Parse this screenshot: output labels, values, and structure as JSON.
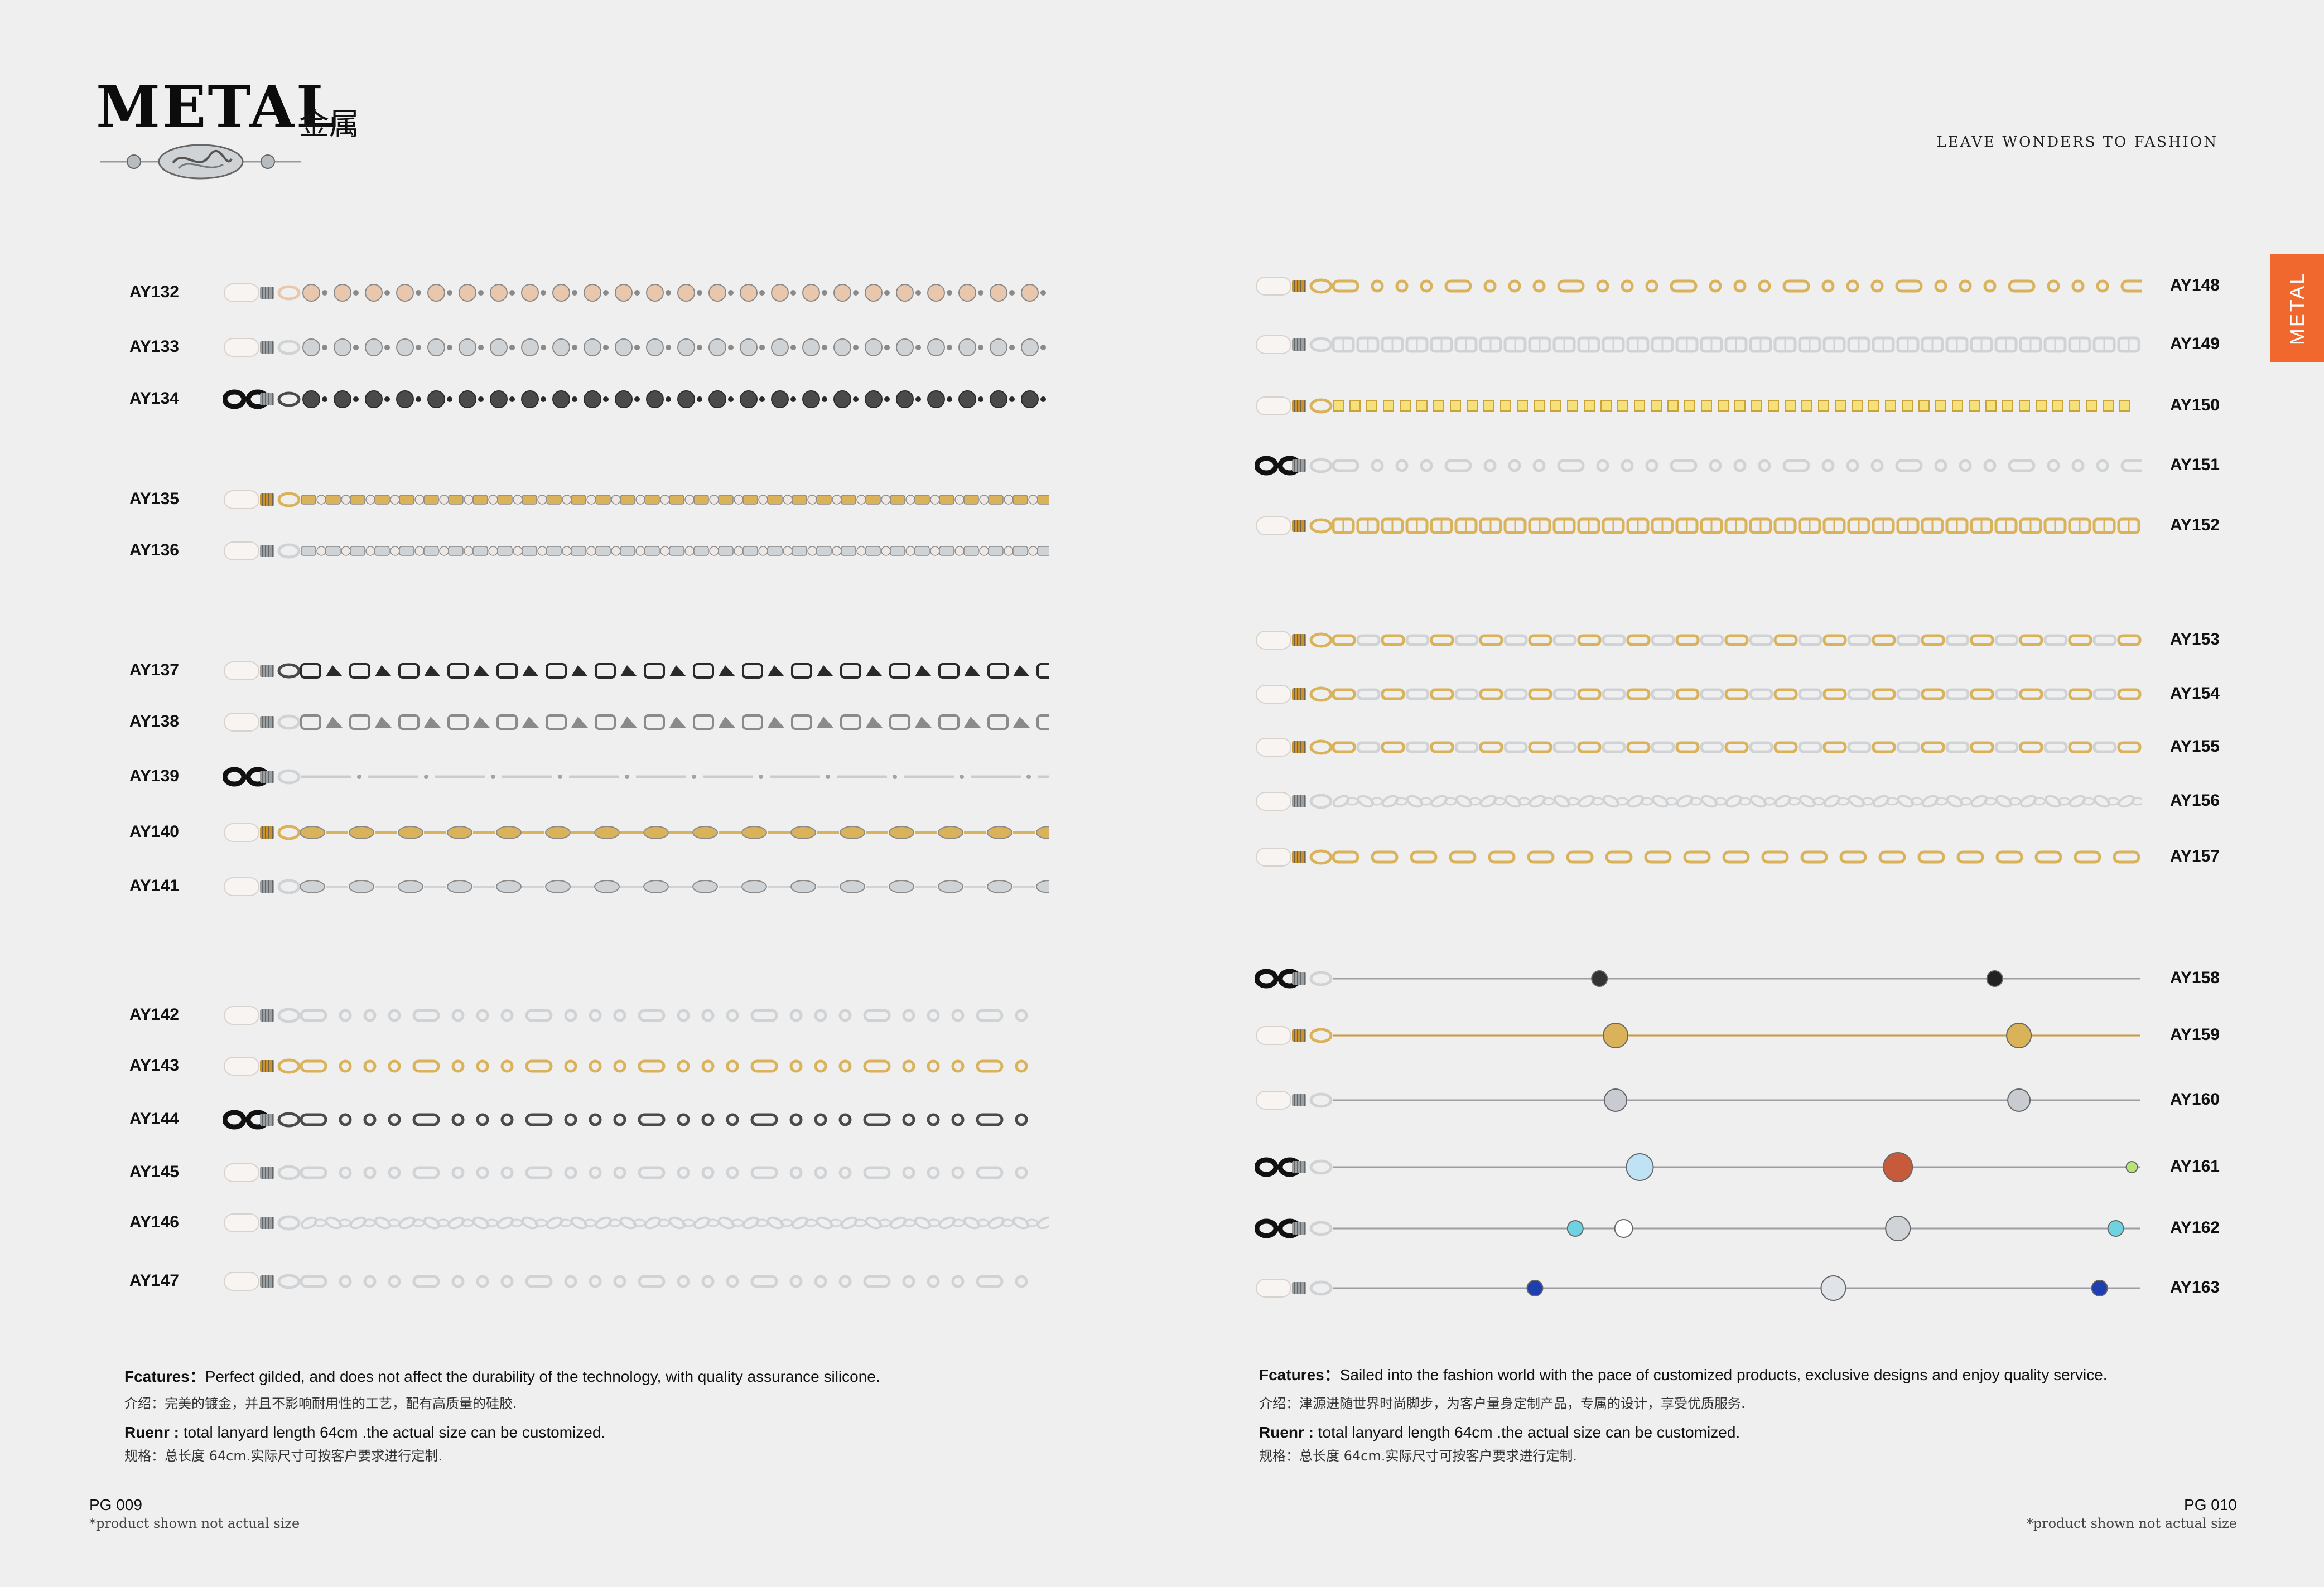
{
  "header": {
    "title": "METAL",
    "title_cn": "金属",
    "tagline": "LEAVE WONDERS TO FASHION",
    "side_tab": "METAL"
  },
  "colors": {
    "accent": "#f0682e",
    "background": "#efefef",
    "gold": "#d9b25a",
    "silver": "#cfd3d6",
    "rose": "#e9c7ad",
    "gunmetal": "#4a4a4a"
  },
  "left_products": [
    {
      "code": "AY132",
      "style": "beads",
      "metal": "rose",
      "end": "clear"
    },
    {
      "code": "AY133",
      "style": "beads",
      "metal": "silver",
      "end": "clear"
    },
    {
      "code": "AY134",
      "style": "beads",
      "metal": "gunmetal",
      "end": "black"
    },
    {
      "code": "AY135",
      "style": "links",
      "metal": "gold",
      "end": "clear"
    },
    {
      "code": "AY136",
      "style": "links",
      "metal": "silver",
      "end": "clear"
    },
    {
      "code": "AY137",
      "style": "blocks",
      "metal": "gunmetal",
      "end": "clear"
    },
    {
      "code": "AY138",
      "style": "blocks",
      "metal": "silver",
      "end": "clear"
    },
    {
      "code": "AY139",
      "style": "bars",
      "metal": "silver",
      "end": "black"
    },
    {
      "code": "AY140",
      "style": "ovals",
      "metal": "gold",
      "end": "clear"
    },
    {
      "code": "AY141",
      "style": "ovals",
      "metal": "silver",
      "end": "clear"
    },
    {
      "code": "AY142",
      "style": "figaro",
      "metal": "silver",
      "end": "clear"
    },
    {
      "code": "AY143",
      "style": "figaro",
      "metal": "gold",
      "end": "clear"
    },
    {
      "code": "AY144",
      "style": "figaro",
      "metal": "gunmetal",
      "end": "black"
    },
    {
      "code": "AY145",
      "style": "figaro",
      "metal": "silver",
      "end": "clear"
    },
    {
      "code": "AY146",
      "style": "twist",
      "metal": "silver",
      "end": "clear"
    },
    {
      "code": "AY147",
      "style": "figaro",
      "metal": "silver",
      "end": "clear"
    }
  ],
  "right_products": [
    {
      "code": "AY148",
      "style": "figaro",
      "metal": "gold",
      "end": "clear"
    },
    {
      "code": "AY149",
      "style": "flat",
      "metal": "silver",
      "end": "clear"
    },
    {
      "code": "AY150",
      "style": "box",
      "metal": "gold",
      "end": "clear"
    },
    {
      "code": "AY151",
      "style": "figaro",
      "metal": "silver",
      "end": "black"
    },
    {
      "code": "AY152",
      "style": "flat",
      "metal": "gold",
      "end": "clear"
    },
    {
      "code": "AY153",
      "style": "mixed",
      "metal": "gold",
      "end": "clear"
    },
    {
      "code": "AY154",
      "style": "mixed",
      "metal": "gold",
      "end": "clear"
    },
    {
      "code": "AY155",
      "style": "mixed",
      "metal": "gold",
      "end": "clear"
    },
    {
      "code": "AY156",
      "style": "twist",
      "metal": "silver",
      "end": "clear"
    },
    {
      "code": "AY157",
      "style": "cable",
      "metal": "gold",
      "end": "clear"
    },
    {
      "code": "AY158",
      "style": "fine",
      "metal": "silver",
      "end": "black",
      "charms": [
        {
          "pos": 0.33,
          "color": "#333333",
          "size": 14
        },
        {
          "pos": 0.82,
          "color": "#222222",
          "size": 14
        }
      ]
    },
    {
      "code": "AY159",
      "style": "fine",
      "metal": "gold",
      "end": "clear",
      "charms": [
        {
          "pos": 0.35,
          "color": "#d9b25a",
          "size": 22
        },
        {
          "pos": 0.85,
          "color": "#d9b25a",
          "size": 22
        }
      ]
    },
    {
      "code": "AY160",
      "style": "fine",
      "metal": "silver",
      "end": "clear",
      "charms": [
        {
          "pos": 0.35,
          "color": "#c8ccd0",
          "size": 20
        },
        {
          "pos": 0.85,
          "color": "#c8ccd0",
          "size": 20
        }
      ]
    },
    {
      "code": "AY161",
      "style": "fine",
      "metal": "silver",
      "end": "black",
      "charms": [
        {
          "pos": 0.38,
          "color": "#bfe3f5",
          "size": 24
        },
        {
          "pos": 0.7,
          "color": "#c85a3c",
          "size": 26
        },
        {
          "pos": 0.99,
          "color": "#b8e37a",
          "size": 10
        }
      ]
    },
    {
      "code": "AY162",
      "style": "fine",
      "metal": "silver",
      "end": "black",
      "charms": [
        {
          "pos": 0.3,
          "color": "#6fd2e0",
          "size": 14
        },
        {
          "pos": 0.36,
          "color": "#ffffff",
          "size": 16
        },
        {
          "pos": 0.7,
          "color": "#d0d4d8",
          "size": 22
        },
        {
          "pos": 0.97,
          "color": "#6fd2e0",
          "size": 14
        }
      ]
    },
    {
      "code": "AY163",
      "style": "fine",
      "metal": "silver",
      "end": "clear",
      "charms": [
        {
          "pos": 0.25,
          "color": "#1f3fb0",
          "size": 14
        },
        {
          "pos": 0.62,
          "color": "#e0e4e8",
          "size": 22
        },
        {
          "pos": 0.95,
          "color": "#1f3fb0",
          "size": 14
        }
      ]
    }
  ],
  "left_footer": {
    "features_label": "Fcatures：",
    "features_text": "Perfect gilded, and does not affect the durability of the technology, with quality assurance silicone.",
    "features_cn": "介绍：完美的镀金，并且不影响耐用性的工艺，配有高质量的硅胶.",
    "ruenr_label": "Ruenr :",
    "ruenr_text": "total lanyard length 64cm .the actual size can be customized.",
    "ruenr_cn": "规格：总长度 64cm.实际尺寸可按客户要求进行定制.",
    "page": "PG 009",
    "note": "*product shown not actual size"
  },
  "right_footer": {
    "features_label": "Fcatures：",
    "features_text": "Sailed into the fashion world with the pace of customized products, exclusive designs and enjoy quality service.",
    "features_cn": "介绍：津源进随世界时尚脚步，为客户量身定制产品，专属的设计，享受优质服务.",
    "ruenr_label": "Ruenr :",
    "ruenr_text": "total lanyard length 64cm .the actual size can be customized.",
    "ruenr_cn": "规格：总长度 64cm.实际尺寸可按客户要求进行定制.",
    "page": "PG 010",
    "note": "*product shown not actual size"
  }
}
